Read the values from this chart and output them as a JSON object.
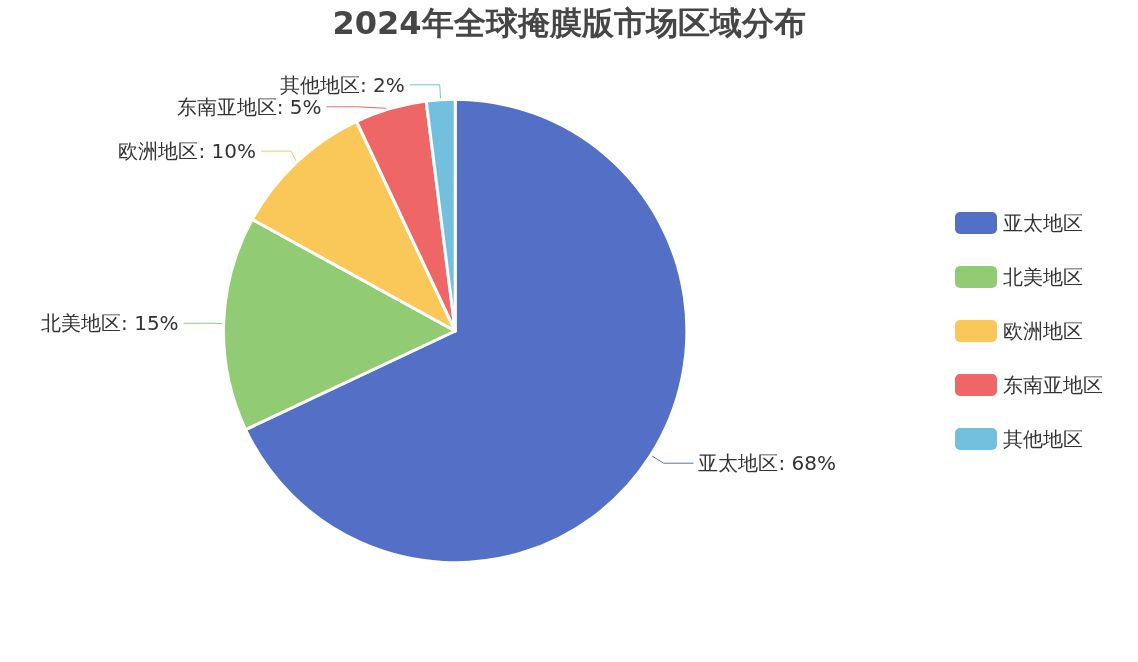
{
  "chart_data": {
    "type": "pie",
    "title": "2024年全球掩膜版市场区域分布",
    "categories": [
      "亚太地区",
      "北美地区",
      "欧洲地区",
      "东南亚地区",
      "其他地区"
    ],
    "values": [
      68,
      15,
      10,
      5,
      2
    ],
    "value_labels": [
      "亚太地区: 68%",
      "北美地区: 15%",
      "欧洲地区: 10%",
      "东南亚地区: 5%",
      "其他地区: 2%"
    ],
    "colors": [
      "#5470c6",
      "#91cc75",
      "#fac858",
      "#ee6666",
      "#73c0de"
    ],
    "legend": "right"
  }
}
